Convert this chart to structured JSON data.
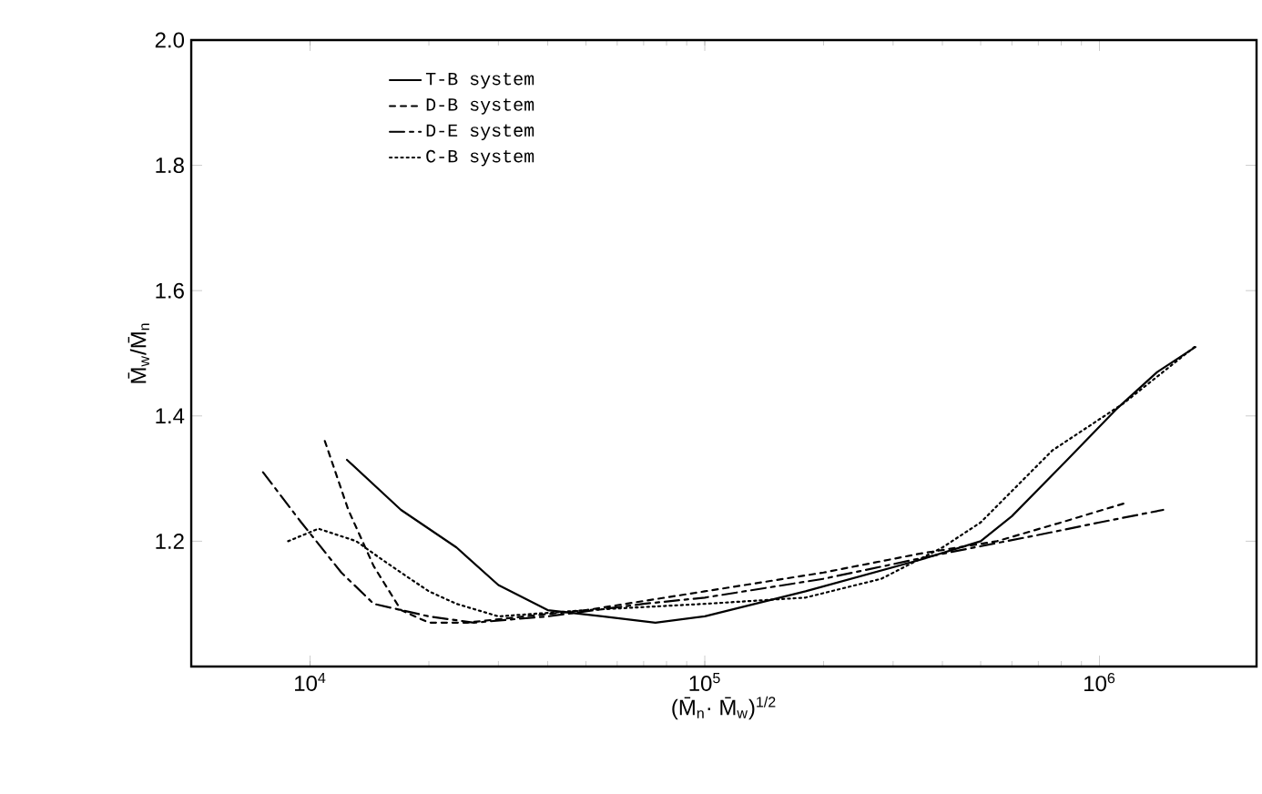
{
  "chart_data": {
    "type": "line",
    "xlabel": "(M̄$_{n}$· M̄$_{w}$)$^{1/2}$",
    "ylabel": "M̄$_{w}$/M̄$_{n}$",
    "log": "x",
    "xlim": [
      5000,
      2500000
    ],
    "ylim": [
      1.0,
      2.0
    ],
    "xticks": [
      {
        "value": 10000,
        "label": "10$^{4}$"
      },
      {
        "value": 100000,
        "label": "10$^{5}$"
      },
      {
        "value": 1000000,
        "label": "10$^{6}$"
      }
    ],
    "yticks": [
      1.2,
      1.4,
      1.6,
      1.8,
      {
        "value": 2.0,
        "label": "2.0"
      }
    ],
    "legend": "top left",
    "marker": "none",
    "series": [
      {
        "name": "T-B system",
        "color": "#000000",
        "line_style": "solid",
        "x": [
          12400,
          17000,
          23500,
          30000,
          40000,
          55000,
          75000,
          100000,
          180000,
          350000,
          500000,
          600000,
          800000,
          1100000,
          1400000,
          1750000
        ],
        "values": [
          1.33,
          1.25,
          1.19,
          1.13,
          1.09,
          1.08,
          1.07,
          1.08,
          1.12,
          1.17,
          1.2,
          1.24,
          1.32,
          1.41,
          1.47,
          1.51
        ]
      },
      {
        "name": "D-B system",
        "color": "#000000",
        "line_style": "dashed",
        "x": [
          10900,
          12500,
          14500,
          17000,
          20000,
          25000,
          35000,
          50000,
          100000,
          200000,
          350000,
          550000,
          800000,
          1150000
        ],
        "values": [
          1.36,
          1.25,
          1.16,
          1.09,
          1.07,
          1.07,
          1.08,
          1.09,
          1.12,
          1.15,
          1.18,
          1.2,
          1.23,
          1.26
        ]
      },
      {
        "name": "D-E system",
        "color": "#000000",
        "line_style": "dashdot",
        "x": [
          7600,
          9500,
          12000,
          14500,
          20000,
          26000,
          40000,
          70000,
          100000,
          200000,
          400000,
          700000,
          1000000,
          1450000
        ],
        "values": [
          1.31,
          1.23,
          1.15,
          1.1,
          1.08,
          1.07,
          1.08,
          1.1,
          1.11,
          1.14,
          1.18,
          1.21,
          1.23,
          1.25
        ]
      },
      {
        "name": "C-B system",
        "color": "#000000",
        "line_style": "dotted",
        "x": [
          8800,
          10500,
          13100,
          14500,
          17000,
          20000,
          23500,
          30000,
          50000,
          100000,
          180000,
          280000,
          400000,
          500000,
          760000,
          1150000,
          1740000
        ],
        "values": [
          1.2,
          1.22,
          1.2,
          1.18,
          1.15,
          1.12,
          1.1,
          1.08,
          1.09,
          1.1,
          1.11,
          1.14,
          1.19,
          1.23,
          1.345,
          1.42,
          1.51
        ]
      }
    ]
  }
}
